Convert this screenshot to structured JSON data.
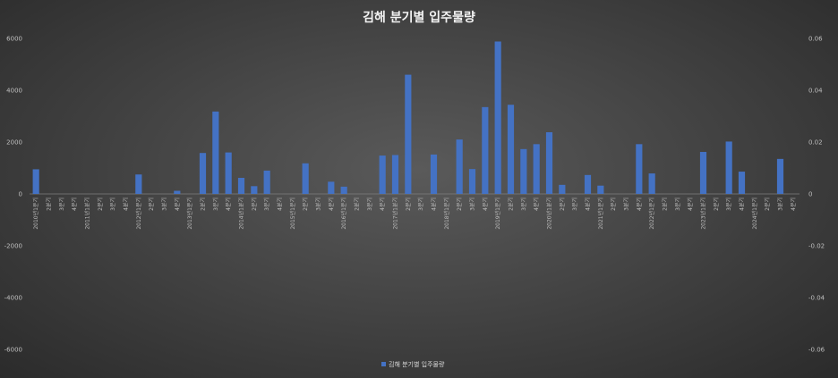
{
  "chart_data": {
    "type": "bar",
    "title": "김해 분기별 입주물량",
    "ylim": [
      -6000,
      6000
    ],
    "y_ticks": [
      6000,
      4000,
      2000,
      0,
      -2000,
      -4000,
      -6000
    ],
    "y2lim": [
      -0.06,
      0.06
    ],
    "y2_ticks": [
      "0.06",
      "0.04",
      "0.02",
      "0",
      "-0.02",
      "-0.04",
      "-0.06"
    ],
    "grid": false,
    "legend_position": "bottom",
    "categories": [
      "2010년1분기",
      "2분기",
      "3분기",
      "4분기",
      "2011년1분기",
      "2분기",
      "3분기",
      "4분기",
      "2012년1분기",
      "2분기",
      "3분기",
      "4분기",
      "2013년1분기",
      "2분기",
      "3분기",
      "4분기",
      "2014년1분기",
      "2분기",
      "3분기",
      "4분기",
      "2015년1분기",
      "2분기",
      "3분기",
      "4분기",
      "2016년1분기",
      "2분기",
      "3분기",
      "4분기",
      "2017년1분기",
      "2분기",
      "3분기",
      "4분기",
      "2018년1분기",
      "2분기",
      "3분기",
      "4분기",
      "2019년1분기",
      "2분기",
      "3분기",
      "4분기",
      "2020년1분기",
      "2분기",
      "3분기",
      "4분기",
      "2021년1분기",
      "2분기",
      "3분기",
      "4분기",
      "2022년1분기",
      "2분기",
      "3분기",
      "4분기",
      "2023년1분기",
      "2분기",
      "3분기",
      "4분기",
      "2024년1분기",
      "2분기",
      "3분기",
      "4분기"
    ],
    "series": [
      {
        "name": "김해 분기별 입주물량",
        "color": "#4472c4",
        "values": [
          950,
          0,
          0,
          0,
          0,
          0,
          0,
          0,
          750,
          0,
          0,
          120,
          0,
          1580,
          3180,
          1600,
          620,
          300,
          900,
          0,
          0,
          1180,
          0,
          470,
          280,
          0,
          0,
          1480,
          1500,
          4600,
          0,
          1520,
          0,
          2100,
          960,
          3350,
          5880,
          3440,
          1730,
          1920,
          2380,
          350,
          0,
          730,
          320,
          0,
          0,
          1920,
          790,
          0,
          0,
          0,
          1620,
          0,
          2020,
          860,
          0,
          0,
          1350,
          0
        ]
      }
    ]
  }
}
